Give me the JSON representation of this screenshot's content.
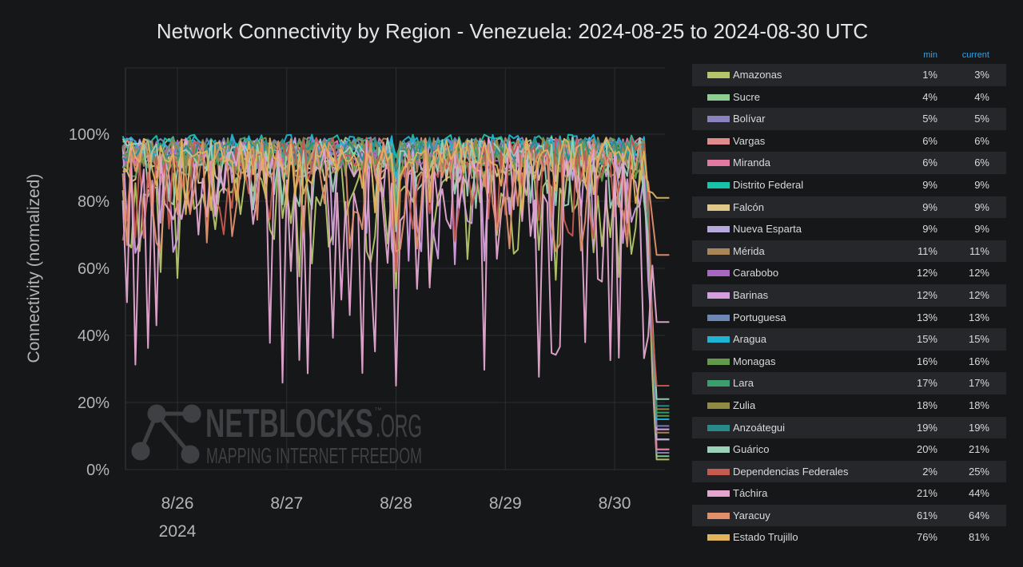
{
  "title": "Network Connectivity by Region - Venezuela: 2024-08-25 to 2024-08-30 UTC",
  "watermark": {
    "brand": "NETBLOCKS",
    "suffix": ".ORG",
    "tm": "™",
    "tagline": "MAPPING INTERNET FREEDOM"
  },
  "legend": {
    "min_header": "min",
    "current_header": "current",
    "items": [
      {
        "name": "Amazonas",
        "color": "#b5c66a",
        "min": "1%",
        "current": "3%"
      },
      {
        "name": "Sucre",
        "color": "#8fcc92",
        "min": "4%",
        "current": "4%"
      },
      {
        "name": "Bolívar",
        "color": "#8c82bf",
        "min": "5%",
        "current": "5%"
      },
      {
        "name": "Vargas",
        "color": "#e08a8e",
        "min": "6%",
        "current": "6%"
      },
      {
        "name": "Miranda",
        "color": "#e2799f",
        "min": "6%",
        "current": "6%"
      },
      {
        "name": "Distrito Federal",
        "color": "#19c2ab",
        "min": "9%",
        "current": "9%"
      },
      {
        "name": "Falcón",
        "color": "#e0c78a",
        "min": "9%",
        "current": "9%"
      },
      {
        "name": "Nueva Esparta",
        "color": "#b8a9dd",
        "min": "9%",
        "current": "9%"
      },
      {
        "name": "Mérida",
        "color": "#a8865a",
        "min": "11%",
        "current": "11%"
      },
      {
        "name": "Carabobo",
        "color": "#a868bf",
        "min": "12%",
        "current": "12%"
      },
      {
        "name": "Barinas",
        "color": "#d49ee0",
        "min": "12%",
        "current": "12%"
      },
      {
        "name": "Portuguesa",
        "color": "#6e86b6",
        "min": "13%",
        "current": "13%"
      },
      {
        "name": "Aragua",
        "color": "#1fb3d4",
        "min": "15%",
        "current": "15%"
      },
      {
        "name": "Monagas",
        "color": "#62994a",
        "min": "16%",
        "current": "16%"
      },
      {
        "name": "Lara",
        "color": "#3c9e6e",
        "min": "17%",
        "current": "17%"
      },
      {
        "name": "Zulia",
        "color": "#8f8a44",
        "min": "18%",
        "current": "18%"
      },
      {
        "name": "Anzoátegui",
        "color": "#2a8a8a",
        "min": "19%",
        "current": "19%"
      },
      {
        "name": "Guárico",
        "color": "#9ad1b8",
        "min": "20%",
        "current": "21%"
      },
      {
        "name": "Dependencias Federales",
        "color": "#c55a50",
        "min": "2%",
        "current": "25%"
      },
      {
        "name": "Táchira",
        "color": "#e4a6d0",
        "min": "21%",
        "current": "44%"
      },
      {
        "name": "Yaracuy",
        "color": "#e08f6a",
        "min": "61%",
        "current": "64%"
      },
      {
        "name": "Estado Trujillo",
        "color": "#e0b35a",
        "min": "76%",
        "current": "81%"
      }
    ]
  },
  "chart_data": {
    "type": "line",
    "title": "Network Connectivity by Region - Venezuela: 2024-08-25 to 2024-08-30 UTC",
    "ylabel": "Connectivity (normalized)",
    "xlabel": "",
    "ylim": [
      0,
      100
    ],
    "yticks": [
      "0%",
      "20%",
      "40%",
      "60%",
      "80%",
      "100%"
    ],
    "xticks": [
      "8/26",
      "8/27",
      "8/28",
      "8/29",
      "8/30"
    ],
    "xtick_sublabel": "2024",
    "x_range": [
      "2024-08-25T12:00",
      "2024-08-30T12:00"
    ],
    "outage_start": "2024-08-30T07:00",
    "grid": true,
    "legend_position": "right",
    "series": [
      {
        "name": "Amazonas",
        "typical_range": [
          54,
          92
        ],
        "final": 3
      },
      {
        "name": "Sucre",
        "typical_range": [
          90,
          99
        ],
        "final": 4
      },
      {
        "name": "Bolívar",
        "typical_range": [
          92,
          99
        ],
        "final": 5
      },
      {
        "name": "Vargas",
        "typical_range": [
          88,
          99
        ],
        "final": 6
      },
      {
        "name": "Miranda",
        "typical_range": [
          90,
          99
        ],
        "final": 6
      },
      {
        "name": "Distrito Federal",
        "typical_range": [
          93,
          100
        ],
        "final": 9
      },
      {
        "name": "Falcón",
        "typical_range": [
          85,
          99
        ],
        "final": 9
      },
      {
        "name": "Nueva Esparta",
        "typical_range": [
          88,
          99
        ],
        "final": 9
      },
      {
        "name": "Mérida",
        "typical_range": [
          86,
          99
        ],
        "final": 11
      },
      {
        "name": "Carabobo",
        "typical_range": [
          90,
          99
        ],
        "final": 12
      },
      {
        "name": "Barinas",
        "typical_range": [
          61,
          99
        ],
        "final": 12
      },
      {
        "name": "Portuguesa",
        "typical_range": [
          92,
          99
        ],
        "final": 13
      },
      {
        "name": "Aragua",
        "typical_range": [
          93,
          100
        ],
        "final": 15
      },
      {
        "name": "Monagas",
        "typical_range": [
          86,
          99
        ],
        "final": 16
      },
      {
        "name": "Lara",
        "typical_range": [
          90,
          99
        ],
        "final": 17
      },
      {
        "name": "Zulia",
        "typical_range": [
          90,
          99
        ],
        "final": 18
      },
      {
        "name": "Anzoátegui",
        "typical_range": [
          92,
          99
        ],
        "final": 19
      },
      {
        "name": "Guárico",
        "typical_range": [
          77,
          99
        ],
        "final": 21
      },
      {
        "name": "Dependencias Federales",
        "typical_range": [
          68,
          99
        ],
        "final": 25
      },
      {
        "name": "Táchira",
        "typical_range": [
          25,
          99
        ],
        "final": 44
      },
      {
        "name": "Yaracuy",
        "typical_range": [
          65,
          99
        ],
        "final": 64
      },
      {
        "name": "Estado Trujillo",
        "typical_range": [
          76,
          99
        ],
        "final": 81
      }
    ]
  }
}
